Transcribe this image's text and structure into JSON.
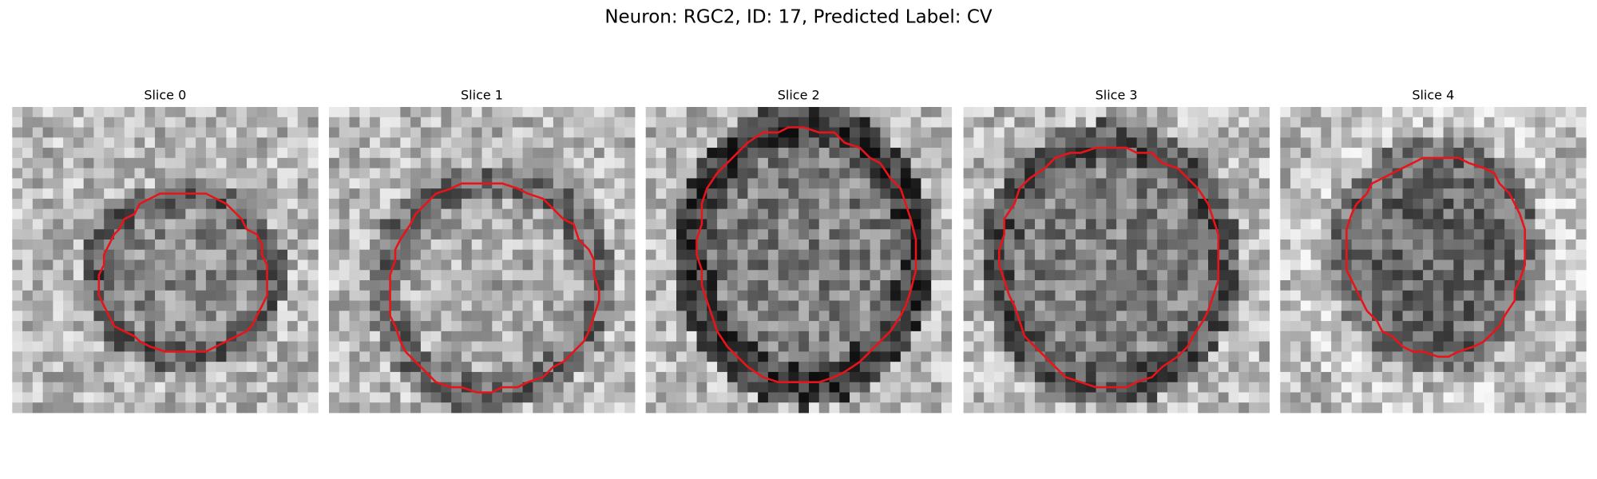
{
  "title": "Neuron: RGC2, ID: 17, Predicted Label: CV",
  "panels": [
    {
      "title": "Slice 0"
    },
    {
      "title": "Slice 1"
    },
    {
      "title": "Slice 2"
    },
    {
      "title": "Slice 3"
    },
    {
      "title": "Slice 4"
    }
  ]
}
